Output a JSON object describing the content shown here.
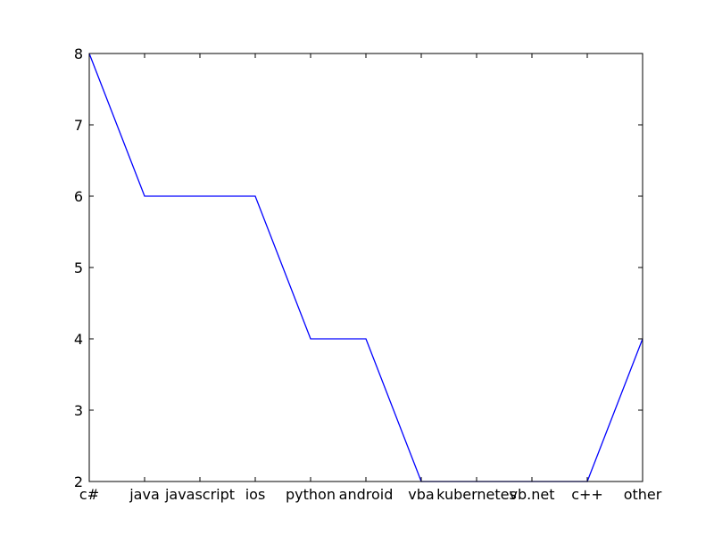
{
  "chart_data": {
    "type": "line",
    "title": "",
    "xlabel": "",
    "ylabel": "",
    "categories": [
      "c#",
      "java",
      "javascript",
      "ios",
      "python",
      "android",
      "vba",
      "kubernetes",
      "vb.net",
      "c++",
      "other"
    ],
    "values": [
      8,
      6,
      6,
      6,
      4,
      4,
      2,
      2,
      2,
      2,
      4
    ],
    "ylim": [
      2,
      8
    ],
    "yticks": [
      2,
      3,
      4,
      5,
      6,
      7,
      8
    ],
    "grid": false,
    "legend": "none",
    "line_color": "#0000ff"
  }
}
